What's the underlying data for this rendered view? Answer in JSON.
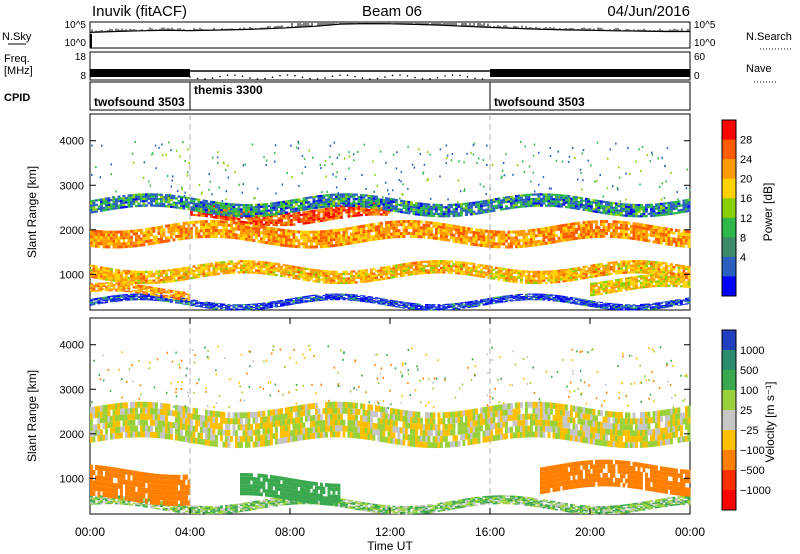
{
  "header": {
    "station": "Inuvik (fitACF)",
    "beam": "Beam 06",
    "date": "04/Jun/2016"
  },
  "panel_labels": {
    "nsky": "N.Sky",
    "freq": "Freq.",
    "freq_unit": "[MHz]",
    "cpid": "CPID",
    "nsearch": "N.Search",
    "nave": "Nave"
  },
  "colors": {
    "series": "#000000",
    "grid": "#b0b0b0",
    "no_data": "#ffffff",
    "ground_scatter": "#bfbfbf"
  },
  "chart_data": [
    {
      "type": "line",
      "panel": "noise",
      "yticks_left": [
        "10^5",
        "10^0"
      ],
      "yticks_right": [
        "10^5",
        "10^0"
      ],
      "x_hours": [
        0,
        1,
        2,
        3,
        4,
        5,
        6,
        7,
        8,
        9,
        10,
        11,
        12,
        13,
        14,
        15,
        16,
        17,
        18,
        19,
        20,
        21,
        22,
        23,
        24
      ],
      "series": [
        {
          "values": [
            1000,
            1500,
            2000,
            2500,
            2200,
            2800,
            3500,
            5000,
            8000,
            15000,
            40000,
            50000,
            45000,
            35000,
            25000,
            15000,
            9000,
            6000,
            4000,
            3000,
            2500,
            2000,
            1800,
            1500,
            1500
          ]
        }
      ]
    },
    {
      "type": "line",
      "panel": "frequency-nave",
      "yticks_left": [
        "18",
        "8"
      ],
      "yticks_right": [
        "60",
        "0"
      ],
      "ylim_left": [
        8,
        18
      ],
      "ylim_right": [
        0,
        60
      ],
      "x_hours": [
        0,
        4,
        16,
        24
      ],
      "series": [
        {
          "values": [
            10.5,
            10.5,
            10.5,
            10.5
          ]
        }
      ]
    },
    {
      "type": "table",
      "panel": "cpid",
      "segments": [
        {
          "label": "twofsound",
          "id": "3503",
          "start_hour": 0,
          "end_hour": 4
        },
        {
          "label": "themis",
          "id": "3300",
          "start_hour": 4,
          "end_hour": 16
        },
        {
          "label": "twofsound",
          "id": "3503",
          "start_hour": 16,
          "end_hour": 24
        }
      ]
    },
    {
      "type": "heatmap",
      "panel": "power",
      "ylabel": "Slant Range [km]",
      "yticks": [
        "4000",
        "3000",
        "2000",
        "1000"
      ],
      "ylim": [
        200,
        4600
      ],
      "xlim": [
        0,
        24
      ],
      "colorbar_label": "Power [dB]",
      "colorbar_ticks": [
        "28",
        "24",
        "20",
        "16",
        "12",
        "8",
        "4"
      ],
      "colorbar_colors": [
        "#ff0000",
        "#ff5c00",
        "#ff9a00",
        "#ffd200",
        "#8ccf00",
        "#2fb84a",
        "#3c8c6c",
        "#2a5fbf",
        "#0000ff"
      ],
      "note": "Heatmap values",
      "layers": [
        {
          "range_km": [
            300,
            450
          ],
          "hours": [
            0,
            24
          ],
          "db": 4
        },
        {
          "range_km": [
            500,
            700
          ],
          "hours": [
            0,
            4
          ],
          "db": 22
        },
        {
          "range_km": [
            600,
            900
          ],
          "hours": [
            20,
            24
          ],
          "db": 18
        },
        {
          "range_km": [
            900,
            1200
          ],
          "hours": [
            0,
            24
          ],
          "db": 20
        },
        {
          "range_km": [
            1700,
            2100
          ],
          "hours": [
            0,
            24
          ],
          "db": 22
        },
        {
          "range_km": [
            2200,
            2500
          ],
          "hours": [
            4,
            12
          ],
          "db": 26
        },
        {
          "range_km": [
            2400,
            2700
          ],
          "hours": [
            0,
            24
          ],
          "db": 8
        }
      ]
    },
    {
      "type": "heatmap",
      "panel": "velocity",
      "ylabel": "Slant Range [km]",
      "yticks": [
        "4000",
        "3000",
        "2000",
        "1000"
      ],
      "ylim": [
        200,
        4600
      ],
      "xlim": [
        0,
        24
      ],
      "xticks": [
        "00:00",
        "04:00",
        "08:00",
        "12:00",
        "16:00",
        "20:00",
        "00:00"
      ],
      "xlabel": "Time UT",
      "colorbar_label": "Velocity [m s⁻¹]",
      "colorbar_ticks": [
        "1000",
        "500",
        "100",
        "25",
        "−25",
        "−100",
        "−500",
        "−1000"
      ],
      "colorbar_colors": [
        "#1f3fbf",
        "#2a8c6c",
        "#3aa84e",
        "#9ad13a",
        "#c6c6c6",
        "#ffc000",
        "#ff8000",
        "#ff3000",
        "#ff0000"
      ],
      "layers": [
        {
          "range_km": [
            1800,
            2600
          ],
          "hours": [
            0,
            24
          ],
          "v": 0
        },
        {
          "range_km": [
            300,
            500
          ],
          "hours": [
            0,
            24
          ],
          "v": 80
        },
        {
          "range_km": [
            500,
            1200
          ],
          "hours": [
            0,
            4
          ],
          "v": -300
        },
        {
          "range_km": [
            500,
            1000
          ],
          "hours": [
            6,
            10
          ],
          "v": 200
        },
        {
          "range_km": [
            700,
            1300
          ],
          "hours": [
            18,
            24
          ],
          "v": -250
        }
      ]
    }
  ]
}
